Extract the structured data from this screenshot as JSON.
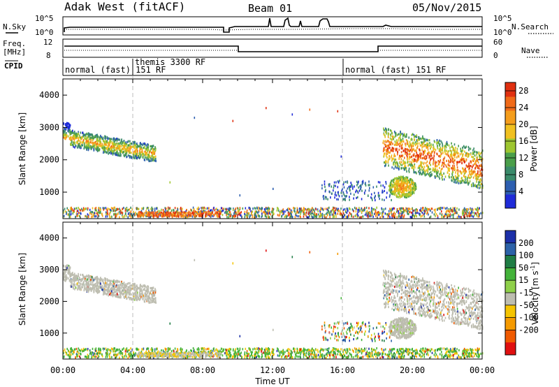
{
  "header": {
    "station": "Adak West (fitACF)",
    "beam": "Beam 01",
    "date": "05/Nov/2015"
  },
  "labels": {
    "nsky": "N.Sky",
    "nsearch": "N.Search",
    "freq_top": "Freq.",
    "freq_unit": "[MHz]",
    "nave": "Nave",
    "cpid": "CPID",
    "ylabel": "Slant Range [km]",
    "xlabel": "Time UT",
    "power_bar": "Power [dB]",
    "velocity_bar": "Velocity [m s",
    "velocity_exp": "-1",
    "velocity_close": "]"
  },
  "noise_ticks": {
    "left": [
      "10^5",
      "10^0"
    ],
    "right": [
      "10^5",
      "10^0"
    ]
  },
  "freq_ticks": {
    "left": [
      "12",
      "8"
    ],
    "right": [
      "60",
      "0"
    ]
  },
  "cpid_labels": [
    {
      "time": 0.1,
      "text": "normal (fast) 151 RF"
    },
    {
      "time": 4.0,
      "text": "themis 3300 RF"
    },
    {
      "time": 16.0,
      "text": "normal (fast) 151 RF"
    }
  ],
  "chart_data": [
    {
      "type": "heatmap",
      "title": "Power",
      "xlabel": "Time UT",
      "ylabel": "Slant Range [km]",
      "xlim": [
        0,
        24
      ],
      "ylim": [
        180,
        4500
      ],
      "x_ticks": [
        "00:00",
        "04:00",
        "08:00",
        "12:00",
        "16:00",
        "20:00",
        "00:00"
      ],
      "y_ticks": [
        1000,
        2000,
        3000,
        4000
      ],
      "dashed_times": [
        4,
        16
      ],
      "colorbar": {
        "label": "Power [dB]",
        "ticks": [
          4,
          8,
          12,
          16,
          20,
          24,
          28
        ],
        "range": [
          0,
          30
        ],
        "colors": [
          "#1f2bd8",
          "#2d5fb0",
          "#3a8a6a",
          "#4a9e4a",
          "#9ec630",
          "#f0c020",
          "#f49d1c",
          "#f06a18",
          "#e03010"
        ]
      },
      "regions": [
        {
          "t": [
            0.0,
            5.3
          ],
          "r": [
            1900,
            3000
          ],
          "desc": "descending band",
          "level": "high"
        },
        {
          "t": [
            18.3,
            24.0
          ],
          "r": [
            1300,
            3000
          ],
          "desc": "far range patch",
          "level": "high"
        },
        {
          "t": [
            18.6,
            20.2
          ],
          "r": [
            800,
            1400
          ],
          "desc": "near blob",
          "level": "medium"
        },
        {
          "t": [
            0.0,
            24.0
          ],
          "r": [
            200,
            450
          ],
          "desc": "ground scatter",
          "level": "low"
        }
      ]
    },
    {
      "type": "heatmap",
      "title": "Velocity",
      "xlabel": "Time UT",
      "ylabel": "Slant Range [km]",
      "xlim": [
        0,
        24
      ],
      "ylim": [
        180,
        4500
      ],
      "x_ticks": [
        "00:00",
        "04:00",
        "08:00",
        "12:00",
        "16:00",
        "20:00",
        "00:00"
      ],
      "y_ticks": [
        1000,
        2000,
        3000,
        4000
      ],
      "dashed_times": [
        4,
        16
      ],
      "colorbar": {
        "label": "Velocity [m s-1]",
        "ticks": [
          200,
          100,
          50,
          15,
          -15,
          -50,
          -100,
          -200
        ],
        "colors": [
          "#1c2fa8",
          "#2c62a8",
          "#1f7d45",
          "#43b23a",
          "#8fd04a",
          "#bdbdb0",
          "#f5c400",
          "#f59a00",
          "#f05a00",
          "#e01010"
        ]
      }
    }
  ]
}
